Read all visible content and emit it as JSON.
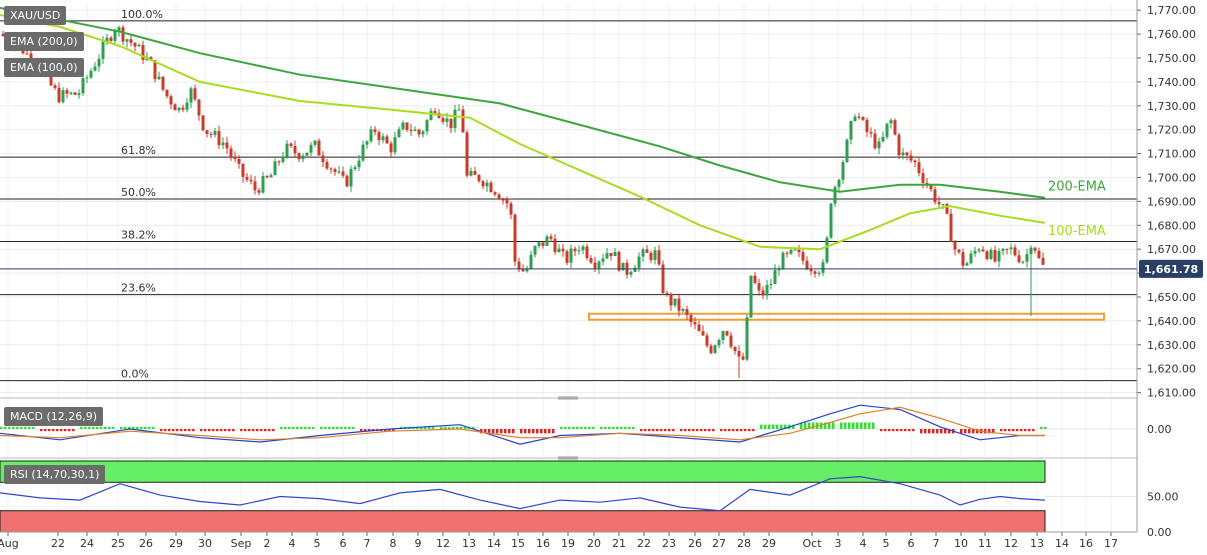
{
  "symbol": "XAU/USD",
  "indicators": {
    "ema200_label": "EMA (200,0)",
    "ema100_label": "EMA (100,0)",
    "macd_label": "MACD (12,26,9)",
    "rsi_label": "RSI (14,70,30,1)"
  },
  "last_price": "1,661.78",
  "colors": {
    "up": "#2e9e4f",
    "down": "#c93c2c",
    "ema200": "#3da53d",
    "ema100": "#a8dd1f",
    "support_zone": "#f0a030",
    "macd_line": "#2244cc",
    "signal_line": "#e0802a",
    "rsi_line": "#3344cc",
    "rsi_overbought": "#66ee66",
    "rsi_oversold": "#f07070"
  },
  "chart_data": [
    {
      "type": "candlestick",
      "title": "XAU/USD",
      "x_labels": [
        "Aug",
        "22",
        "24",
        "25",
        "26",
        "29",
        "30",
        "Sep",
        "2",
        "4",
        "5",
        "6",
        "7",
        "8",
        "9",
        "12",
        "13",
        "14",
        "15",
        "16",
        "19",
        "20",
        "21",
        "22",
        "23",
        "26",
        "27",
        "28",
        "29",
        "Oct",
        "3",
        "4",
        "5",
        "6",
        "7",
        "10",
        "11",
        "12",
        "13",
        "14",
        "16",
        "17"
      ],
      "y_ticks": [
        "1,770.00",
        "1,760.00",
        "1,750.00",
        "1,740.00",
        "1,730.00",
        "1,720.00",
        "1,710.00",
        "1,700.00",
        "1,690.00",
        "1,680.00",
        "1,670.00",
        "1,660.00",
        "1,650.00",
        "1,640.00",
        "1,630.00",
        "1,620.00",
        "1,610.00"
      ],
      "ylim": [
        1609,
        1773
      ],
      "grid": true,
      "fibonacci": [
        {
          "label": "100.0%",
          "value": 1765.5
        },
        {
          "label": "61.8%",
          "value": 1708.5
        },
        {
          "label": "50.0%",
          "value": 1691.0
        },
        {
          "label": "38.2%",
          "value": 1673.2
        },
        {
          "label": "23.6%",
          "value": 1651.0
        },
        {
          "label": "0.0%",
          "value": 1615.0
        }
      ],
      "support_zone": [
        1640.5,
        1643.0
      ],
      "current_price_line": 1661.78,
      "ema_labels": [
        "200-EMA",
        "100-EMA"
      ],
      "close_path": [
        [
          0,
          1760
        ],
        [
          20,
          1755
        ],
        [
          40,
          1745
        ],
        [
          58,
          1734
        ],
        [
          78,
          1735
        ],
        [
          95,
          1748
        ],
        [
          115,
          1763
        ],
        [
          135,
          1755
        ],
        [
          150,
          1748
        ],
        [
          165,
          1735
        ],
        [
          180,
          1728
        ],
        [
          190,
          1737
        ],
        [
          205,
          1720
        ],
        [
          225,
          1714
        ],
        [
          240,
          1702
        ],
        [
          255,
          1695
        ],
        [
          270,
          1700
        ],
        [
          285,
          1712
        ],
        [
          300,
          1710
        ],
        [
          315,
          1713
        ],
        [
          330,
          1705
        ],
        [
          345,
          1697
        ],
        [
          360,
          1710
        ],
        [
          375,
          1720
        ],
        [
          390,
          1712
        ],
        [
          405,
          1722
        ],
        [
          420,
          1718
        ],
        [
          435,
          1730
        ],
        [
          450,
          1722
        ],
        [
          462,
          1730
        ],
        [
          465,
          1700
        ],
        [
          480,
          1700
        ],
        [
          495,
          1695
        ],
        [
          510,
          1688
        ],
        [
          515,
          1665
        ],
        [
          525,
          1660
        ],
        [
          535,
          1670
        ],
        [
          550,
          1675
        ],
        [
          565,
          1665
        ],
        [
          580,
          1672
        ],
        [
          595,
          1665
        ],
        [
          610,
          1670
        ],
        [
          625,
          1660
        ],
        [
          640,
          1667
        ],
        [
          655,
          1668
        ],
        [
          665,
          1650
        ],
        [
          680,
          1645
        ],
        [
          695,
          1637
        ],
        [
          710,
          1628
        ],
        [
          725,
          1638
        ],
        [
          740,
          1622
        ],
        [
          745,
          1625
        ],
        [
          750,
          1660
        ],
        [
          760,
          1650
        ],
        [
          770,
          1655
        ],
        [
          780,
          1665
        ],
        [
          795,
          1668
        ],
        [
          810,
          1663
        ],
        [
          825,
          1662
        ],
        [
          830,
          1690
        ],
        [
          845,
          1710
        ],
        [
          855,
          1728
        ],
        [
          865,
          1720
        ],
        [
          880,
          1712
        ],
        [
          890,
          1725
        ],
        [
          900,
          1710
        ],
        [
          915,
          1706
        ],
        [
          930,
          1695
        ],
        [
          945,
          1685
        ],
        [
          955,
          1670
        ],
        [
          965,
          1663
        ],
        [
          980,
          1672
        ],
        [
          995,
          1665
        ],
        [
          1010,
          1670
        ],
        [
          1025,
          1665
        ],
        [
          1032,
          1675
        ],
        [
          1040,
          1664
        ],
        [
          1045,
          1661.78
        ]
      ],
      "ema200_path": [
        [
          0,
          1771
        ],
        [
          60,
          1766
        ],
        [
          120,
          1761
        ],
        [
          200,
          1752
        ],
        [
          300,
          1743
        ],
        [
          400,
          1737
        ],
        [
          500,
          1731
        ],
        [
          580,
          1722
        ],
        [
          660,
          1713
        ],
        [
          720,
          1705
        ],
        [
          780,
          1698
        ],
        [
          840,
          1694
        ],
        [
          900,
          1697
        ],
        [
          940,
          1697
        ],
        [
          1000,
          1694
        ],
        [
          1045,
          1691.5
        ]
      ],
      "ema100_path": [
        [
          0,
          1768
        ],
        [
          60,
          1763
        ],
        [
          120,
          1755
        ],
        [
          200,
          1740
        ],
        [
          300,
          1732
        ],
        [
          400,
          1728
        ],
        [
          470,
          1725
        ],
        [
          520,
          1714
        ],
        [
          580,
          1703
        ],
        [
          640,
          1692
        ],
        [
          700,
          1680
        ],
        [
          760,
          1671
        ],
        [
          820,
          1670
        ],
        [
          870,
          1678
        ],
        [
          910,
          1685
        ],
        [
          950,
          1688
        ],
        [
          1000,
          1684
        ],
        [
          1045,
          1681
        ]
      ]
    },
    {
      "type": "macd",
      "title": "MACD (12,26,9)",
      "y_ticks": [
        "0.00"
      ],
      "ylim": [
        -12,
        12
      ],
      "macd_path": [
        [
          0,
          -2
        ],
        [
          60,
          -5
        ],
        [
          130,
          0
        ],
        [
          200,
          -4
        ],
        [
          260,
          -6
        ],
        [
          320,
          -3
        ],
        [
          390,
          0
        ],
        [
          460,
          2
        ],
        [
          520,
          -7
        ],
        [
          560,
          -3
        ],
        [
          620,
          -2
        ],
        [
          680,
          -4
        ],
        [
          740,
          -6
        ],
        [
          790,
          1
        ],
        [
          830,
          7
        ],
        [
          860,
          11
        ],
        [
          900,
          9
        ],
        [
          940,
          1
        ],
        [
          980,
          -5
        ],
        [
          1020,
          -3
        ],
        [
          1045,
          -3
        ]
      ],
      "signal_path": [
        [
          0,
          -3
        ],
        [
          60,
          -4
        ],
        [
          130,
          -1
        ],
        [
          200,
          -3
        ],
        [
          260,
          -5
        ],
        [
          320,
          -4
        ],
        [
          390,
          -1
        ],
        [
          460,
          0
        ],
        [
          520,
          -4
        ],
        [
          560,
          -4
        ],
        [
          620,
          -2
        ],
        [
          680,
          -3
        ],
        [
          740,
          -5
        ],
        [
          790,
          -2
        ],
        [
          830,
          3
        ],
        [
          860,
          7
        ],
        [
          900,
          10
        ],
        [
          940,
          5
        ],
        [
          980,
          -1
        ],
        [
          1020,
          -3
        ],
        [
          1045,
          -3
        ]
      ],
      "histogram": [
        [
          0,
          1
        ],
        [
          40,
          -1
        ],
        [
          80,
          1
        ],
        [
          120,
          1
        ],
        [
          160,
          -1
        ],
        [
          200,
          -1
        ],
        [
          240,
          -1
        ],
        [
          280,
          1
        ],
        [
          320,
          1
        ],
        [
          360,
          -1
        ],
        [
          400,
          1
        ],
        [
          440,
          1
        ],
        [
          480,
          -2
        ],
        [
          520,
          -2
        ],
        [
          560,
          1
        ],
        [
          600,
          1
        ],
        [
          640,
          -1
        ],
        [
          680,
          -1
        ],
        [
          720,
          -1
        ],
        [
          760,
          2
        ],
        [
          800,
          3
        ],
        [
          840,
          3
        ],
        [
          880,
          -1
        ],
        [
          920,
          -2
        ],
        [
          960,
          -2
        ],
        [
          1000,
          -1
        ],
        [
          1040,
          1
        ]
      ]
    },
    {
      "type": "rsi",
      "title": "RSI (14,70,30,1)",
      "y_ticks": [
        "50.00",
        "0.00"
      ],
      "ylim": [
        0,
        100
      ],
      "overbought": 70,
      "oversold": 30,
      "rsi_path": [
        [
          0,
          55
        ],
        [
          40,
          48
        ],
        [
          80,
          45
        ],
        [
          120,
          68
        ],
        [
          160,
          52
        ],
        [
          200,
          43
        ],
        [
          240,
          38
        ],
        [
          280,
          50
        ],
        [
          320,
          47
        ],
        [
          360,
          40
        ],
        [
          400,
          55
        ],
        [
          440,
          60
        ],
        [
          480,
          45
        ],
        [
          520,
          33
        ],
        [
          560,
          45
        ],
        [
          600,
          42
        ],
        [
          640,
          48
        ],
        [
          680,
          35
        ],
        [
          720,
          30
        ],
        [
          750,
          60
        ],
        [
          790,
          52
        ],
        [
          830,
          75
        ],
        [
          860,
          78
        ],
        [
          900,
          68
        ],
        [
          940,
          52
        ],
        [
          960,
          38
        ],
        [
          980,
          46
        ],
        [
          1000,
          50
        ],
        [
          1020,
          47
        ],
        [
          1045,
          45
        ]
      ]
    }
  ]
}
